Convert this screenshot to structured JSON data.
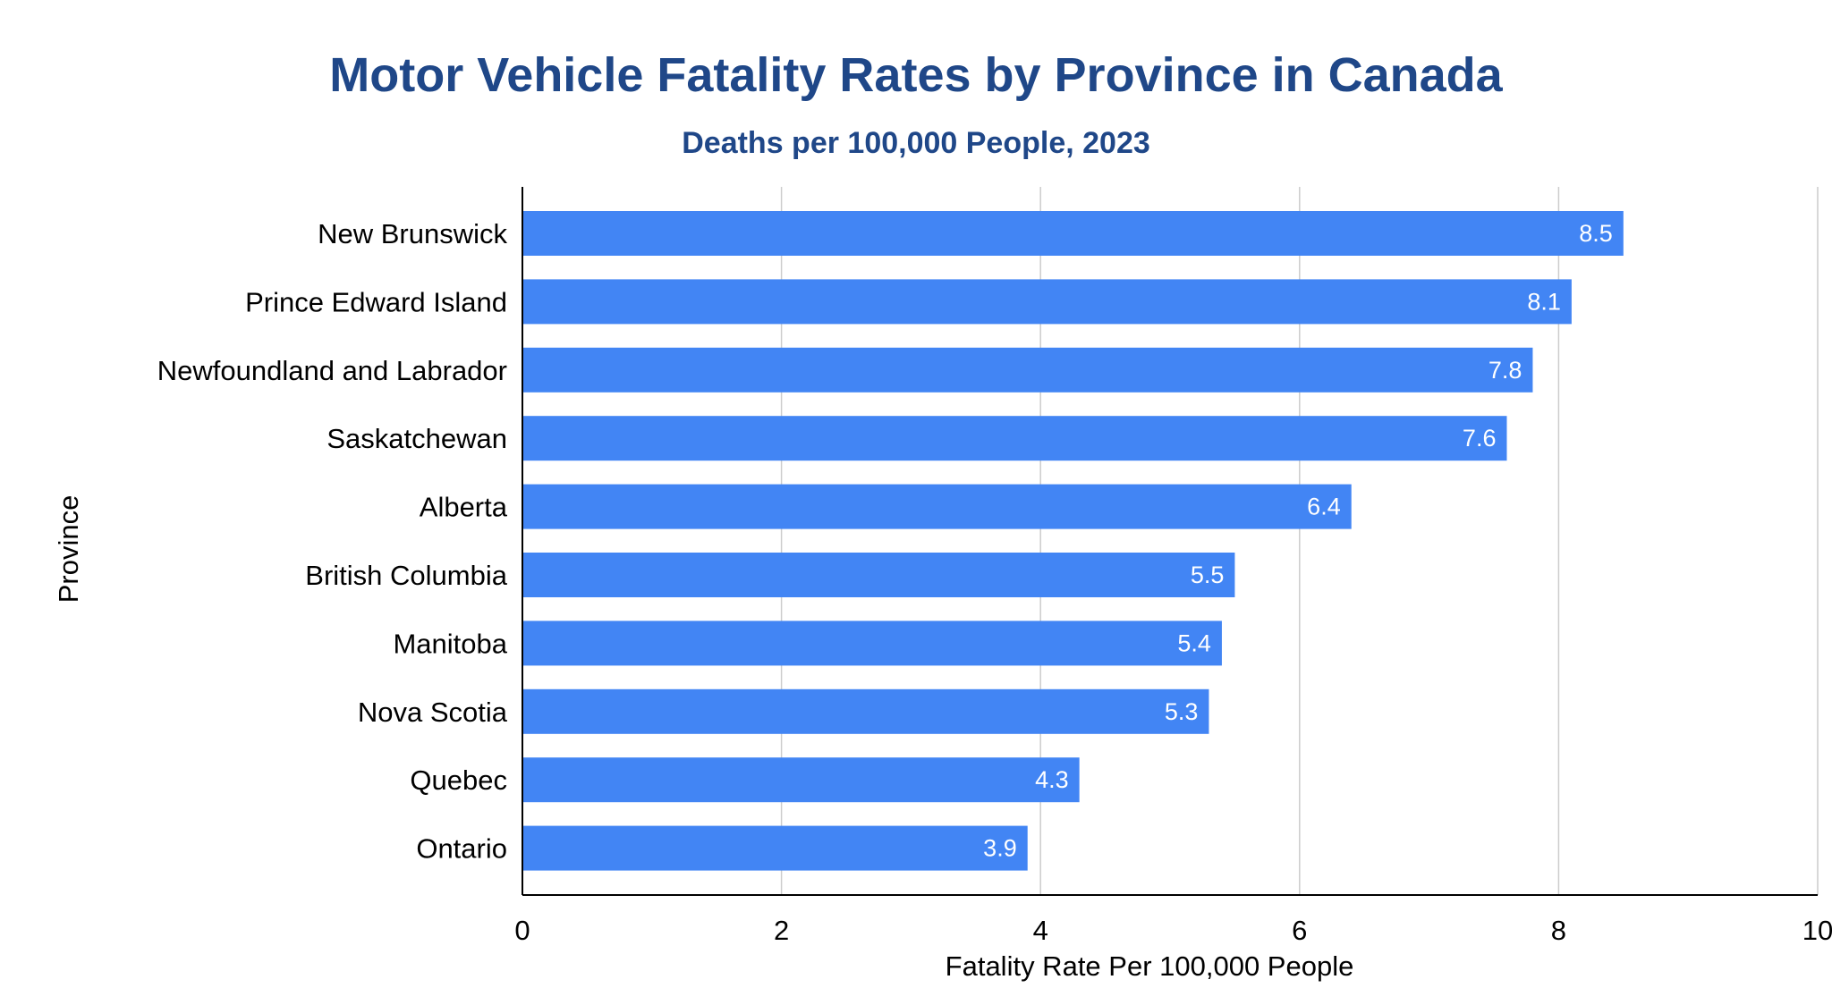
{
  "chart_data": {
    "type": "bar",
    "orientation": "horizontal",
    "title": "Motor Vehicle Fatality Rates by Province in Canada",
    "subtitle": "Deaths per 100,000 People, 2023",
    "xlabel": "Fatality Rate Per 100,000 People",
    "ylabel": "Province",
    "categories": [
      "New Brunswick",
      "Prince Edward Island",
      "Newfoundland and Labrador",
      "Saskatchewan",
      "Alberta",
      "British Columbia",
      "Manitoba",
      "Nova Scotia",
      "Quebec",
      "Ontario"
    ],
    "values": [
      8.5,
      8.1,
      7.8,
      7.6,
      6.4,
      5.5,
      5.4,
      5.3,
      4.3,
      3.9
    ],
    "data_labels": [
      "8.5",
      "8.1",
      "7.8",
      "7.6",
      "6.4",
      "5.5",
      "5.4",
      "5.3",
      "4.3",
      "3.9"
    ],
    "xlim": [
      0,
      10
    ],
    "xticks": [
      0,
      2,
      4,
      6,
      8,
      10
    ],
    "xtick_labels": [
      "0",
      "2",
      "4",
      "6",
      "8",
      "10"
    ],
    "grid": "vertical",
    "legend": "none",
    "colors": {
      "bar": "#4285f4",
      "title": "#1f4788",
      "grid": "#cccccc",
      "axis": "#000000",
      "bar_label": "#ffffff"
    }
  }
}
